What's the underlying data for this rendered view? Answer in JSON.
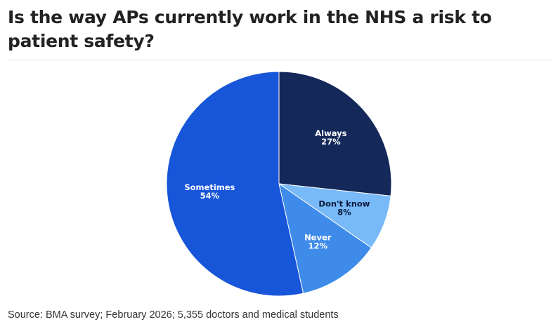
{
  "header": {
    "title": "Is the way APs currently work in the NHS a risk to patient safety?"
  },
  "footer": {
    "source": "Source: BMA survey; February 2026; 5,355 doctors and medical students"
  },
  "chart_data": {
    "type": "pie",
    "title": "Is the way APs currently work in the NHS a risk to patient safety?",
    "slices": [
      {
        "label": "Always",
        "value": 27,
        "value_label": "27%",
        "color": "#14285a",
        "text_color": "#ffffff"
      },
      {
        "label": "Don't know",
        "value": 8,
        "value_label": "8%",
        "color": "#78b9f8",
        "text_color": "#0b1a3a"
      },
      {
        "label": "Never",
        "value": 12,
        "value_label": "12%",
        "color": "#3f8be9",
        "text_color": "#ffffff"
      },
      {
        "label": "Sometimes",
        "value": 54,
        "value_label": "54%",
        "color": "#1755d9",
        "text_color": "#ffffff"
      }
    ],
    "start": "12 o'clock",
    "direction": "clockwise",
    "legend": "none"
  }
}
